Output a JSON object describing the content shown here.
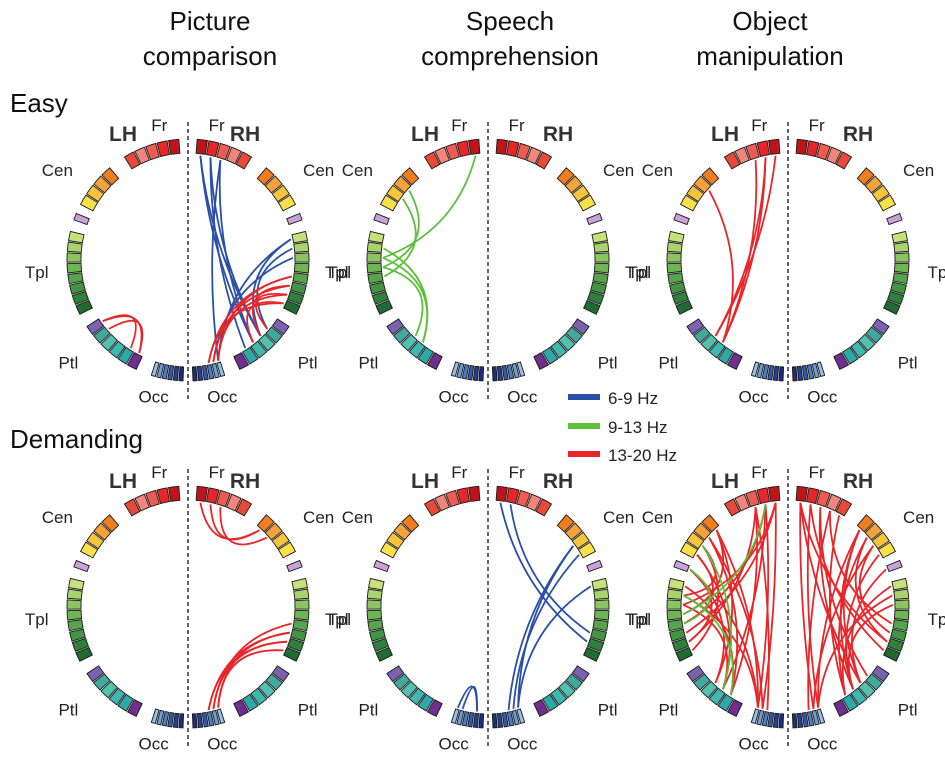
{
  "columns": [
    {
      "line1": "Picture",
      "line2": "comparison"
    },
    {
      "line1": "Speech",
      "line2": "comprehension"
    },
    {
      "line1": "Object",
      "line2": "manipulation"
    }
  ],
  "rows": [
    {
      "label": "Easy"
    },
    {
      "label": "Demanding"
    }
  ],
  "hemispheres": {
    "left": "LH",
    "right": "RH"
  },
  "regions": {
    "frontal": "Fr",
    "central": "Cen",
    "temporal": "Tpl",
    "parietal": "Ptl",
    "occipital": "Occ"
  },
  "legend": [
    {
      "label": "6-9 Hz",
      "color": "#2b4fa8"
    },
    {
      "label": "9-13 Hz",
      "color": "#5cbf3a"
    },
    {
      "label": "13-20 Hz",
      "color": "#e8262a"
    }
  ],
  "region_colors": {
    "frontal": [
      "#c0141b",
      "#e8262a",
      "#ee5b50",
      "#f2857a",
      "#e84a3a"
    ],
    "central": [
      "#f07d1e",
      "#f5a23a",
      "#f7c43c",
      "#f9e04b"
    ],
    "central_tail": "#c9a0d8",
    "temporal": [
      "#c6e27a",
      "#a9d36b",
      "#8cc45f",
      "#6fb554",
      "#57a54b",
      "#419442",
      "#2f803a",
      "#206b31"
    ],
    "parietal": [
      "#7b62b0",
      "#43a8a0",
      "#52c1b0",
      "#3fb8b0",
      "#2ea8a8",
      "#6f2f8f"
    ],
    "occipital": [
      "#9ac0e8",
      "#6f9ed6",
      "#4b7cc4",
      "#3559ad",
      "#253f93",
      "#1a2e7a"
    ]
  },
  "connections": {
    "picture_easy": {
      "lh": [
        {
          "f": "13-20 Hz",
          "pairs": [
            [
              "P0",
              "P5"
            ],
            [
              "P1",
              "P5"
            ],
            [
              "P0",
              "P4"
            ]
          ]
        }
      ],
      "rh": [
        {
          "f": "6-9 Hz",
          "pairs": [
            [
              "F0",
              "P2"
            ],
            [
              "F0",
              "P3"
            ],
            [
              "F1",
              "P2"
            ],
            [
              "F1",
              "P4"
            ],
            [
              "F2",
              "P3"
            ],
            [
              "F2",
              "O0"
            ],
            [
              "T0",
              "O0"
            ],
            [
              "T0",
              "P2"
            ],
            [
              "T1",
              "P1"
            ],
            [
              "T2",
              "O1"
            ]
          ]
        },
        {
          "f": "13-20 Hz",
          "pairs": [
            [
              "T4",
              "O0"
            ],
            [
              "T5",
              "O1"
            ],
            [
              "T6",
              "O0"
            ],
            [
              "T5",
              "P2"
            ],
            [
              "T6",
              "P1"
            ],
            [
              "T7",
              "O2"
            ],
            [
              "T4",
              "O2"
            ],
            [
              "T7",
              "P3"
            ]
          ]
        }
      ]
    },
    "speech_easy": {
      "lh": [
        {
          "f": "9-13 Hz",
          "pairs": [
            [
              "F0",
              "T2"
            ],
            [
              "C1",
              "T3"
            ],
            [
              "C2",
              "T4"
            ],
            [
              "T2",
              "P3"
            ],
            [
              "T3",
              "P2"
            ],
            [
              "T1",
              "P3"
            ]
          ]
        }
      ],
      "rh": []
    },
    "object_easy": {
      "lh": [
        {
          "f": "13-20 Hz",
          "pairs": [
            [
              "F0",
              "P2"
            ],
            [
              "F1",
              "P2"
            ],
            [
              "F2",
              "P3"
            ],
            [
              "C1",
              "P3"
            ],
            [
              "F1",
              "P3"
            ]
          ]
        }
      ],
      "rh": []
    },
    "picture_demanding": {
      "lh": [],
      "rh": [
        {
          "f": "13-20 Hz",
          "pairs": [
            [
              "F1",
              "C0"
            ],
            [
              "F2",
              "C1"
            ],
            [
              "F0",
              "C0"
            ],
            [
              "T5",
              "O0"
            ],
            [
              "T6",
              "O1"
            ],
            [
              "T7",
              "O0"
            ],
            [
              "T5",
              "O2"
            ],
            [
              "T6",
              "O2"
            ],
            [
              "T4",
              "O1"
            ]
          ]
        }
      ]
    },
    "speech_demanding": {
      "lh": [
        {
          "f": "6-9 Hz",
          "pairs": [
            [
              "O0",
              "O4"
            ],
            [
              "O1",
              "O4"
            ]
          ]
        }
      ],
      "rh": [
        {
          "f": "6-9 Hz",
          "pairs": [
            [
              "F0",
              "T6"
            ],
            [
              "F1",
              "T5"
            ],
            [
              "C2",
              "O0"
            ],
            [
              "C3",
              "O1"
            ],
            [
              "T0",
              "O0"
            ],
            [
              "C2",
              "O2"
            ]
          ]
        }
      ]
    },
    "object_demanding": {
      "lh": [
        {
          "f": "13-20 Hz",
          "pairs": [
            [
              "F0",
              "T2"
            ],
            [
              "F0",
              "T5"
            ],
            [
              "F1",
              "P3"
            ],
            [
              "F1",
              "O0"
            ],
            [
              "F2",
              "T6"
            ],
            [
              "F2",
              "P4"
            ],
            [
              "C0",
              "T3"
            ],
            [
              "C0",
              "P2"
            ],
            [
              "C1",
              "O1"
            ],
            [
              "C1",
              "P4"
            ],
            [
              "C2",
              "T7"
            ],
            [
              "C3",
              "P3"
            ],
            [
              "C3",
              "T4"
            ],
            [
              "CT",
              "O0"
            ],
            [
              "CT",
              "P2"
            ],
            [
              "T0",
              "P4"
            ],
            [
              "T1",
              "O0"
            ],
            [
              "T2",
              "P3"
            ],
            [
              "F0",
              "O1"
            ],
            [
              "C2",
              "T1"
            ],
            [
              "CT",
              "T6"
            ],
            [
              "F2",
              "O2"
            ],
            [
              "C0",
              "O0"
            ],
            [
              "F1",
              "T4"
            ]
          ]
        },
        {
          "f": "9-13 Hz",
          "pairs": [
            [
              "F1",
              "T3"
            ],
            [
              "C2",
              "P3"
            ],
            [
              "CT",
              "T4"
            ],
            [
              "T1",
              "P4"
            ]
          ]
        }
      ],
      "rh": [
        {
          "f": "13-20 Hz",
          "pairs": [
            [
              "F0",
              "P2"
            ],
            [
              "F0",
              "O1"
            ],
            [
              "F1",
              "T7"
            ],
            [
              "F1",
              "O0"
            ],
            [
              "F2",
              "P3"
            ],
            [
              "F2",
              "P1"
            ],
            [
              "F3",
              "O2"
            ],
            [
              "C0",
              "P2"
            ],
            [
              "C0",
              "O0"
            ],
            [
              "C1",
              "P4"
            ],
            [
              "C1",
              "T6"
            ],
            [
              "C2",
              "O1"
            ],
            [
              "C3",
              "P3"
            ],
            [
              "CT",
              "P2"
            ],
            [
              "T0",
              "P4"
            ],
            [
              "T1",
              "O0"
            ],
            [
              "T2",
              "P3"
            ],
            [
              "F4",
              "P4"
            ],
            [
              "C2",
              "T5"
            ],
            [
              "F3",
              "T4"
            ],
            [
              "C0",
              "P3"
            ],
            [
              "F0",
              "T6"
            ]
          ]
        }
      ]
    }
  }
}
